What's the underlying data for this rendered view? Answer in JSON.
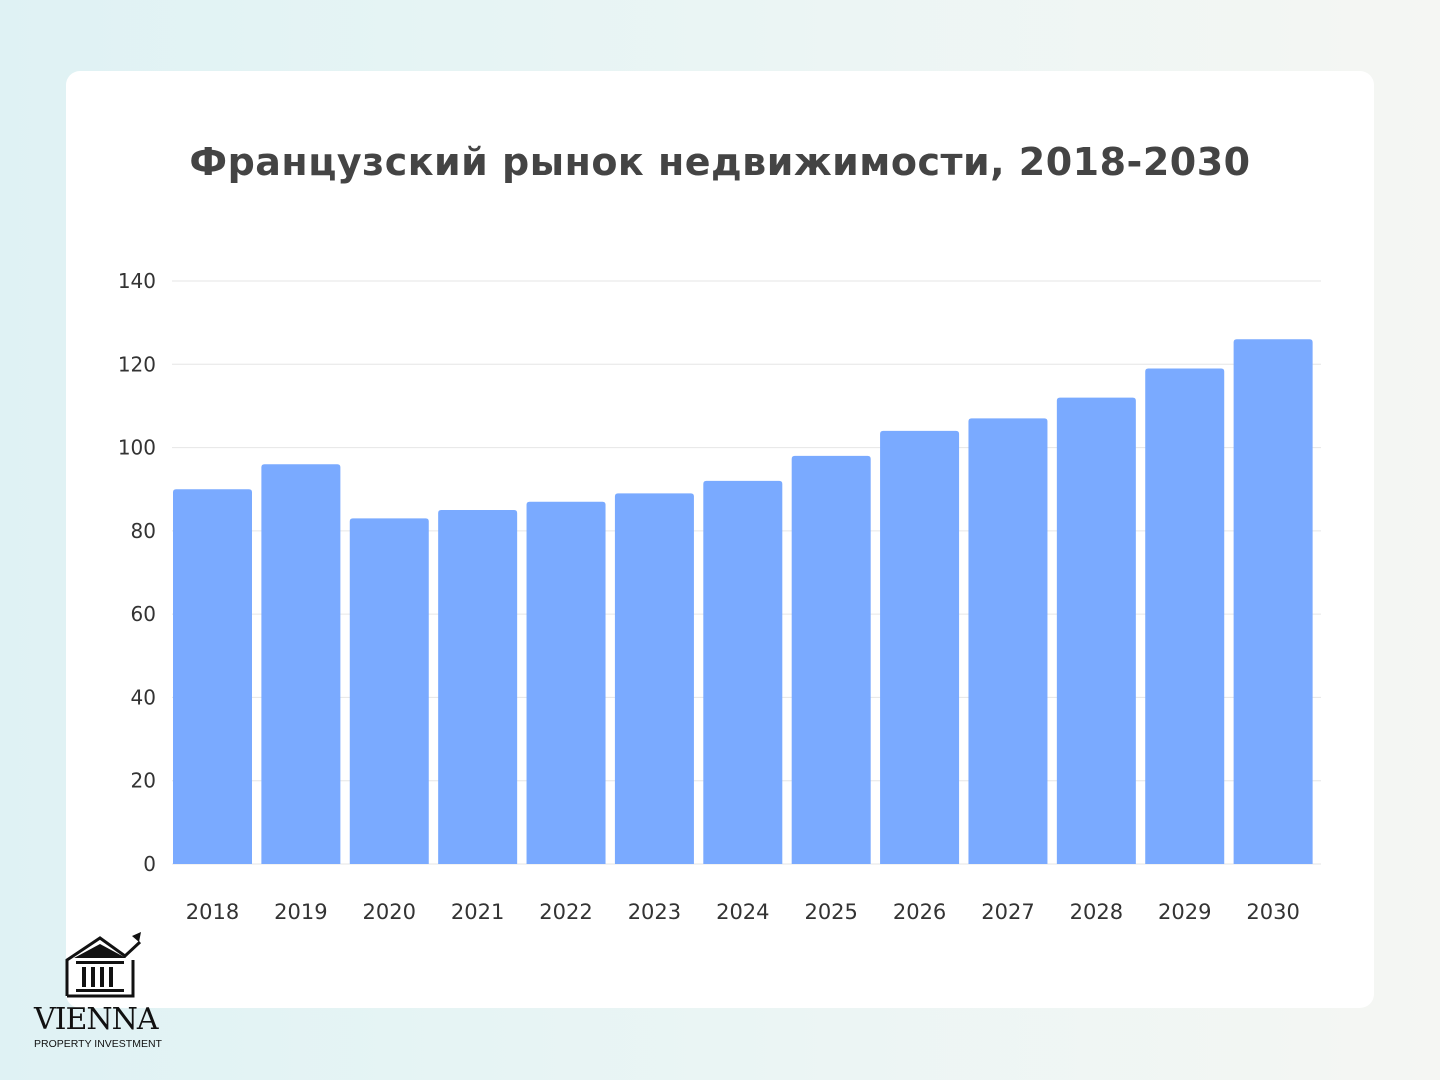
{
  "chart_data": {
    "type": "bar",
    "title": "Французский рынок недвижимости, 2018-2030",
    "categories": [
      "2018",
      "2019",
      "2020",
      "2021",
      "2022",
      "2023",
      "2024",
      "2025",
      "2026",
      "2027",
      "2028",
      "2029",
      "2030"
    ],
    "values": [
      90,
      96,
      83,
      85,
      87,
      89,
      92,
      98,
      104,
      107,
      112,
      119,
      126
    ],
    "ylim": [
      0,
      140
    ],
    "yticks": [
      0,
      20,
      40,
      60,
      80,
      100,
      120,
      140
    ],
    "xlabel": "",
    "ylabel": "",
    "grid": true,
    "bar_color": "#7aaaff"
  },
  "logo": {
    "name": "VIENNA",
    "subtitle": "PROPERTY INVESTMENT"
  }
}
